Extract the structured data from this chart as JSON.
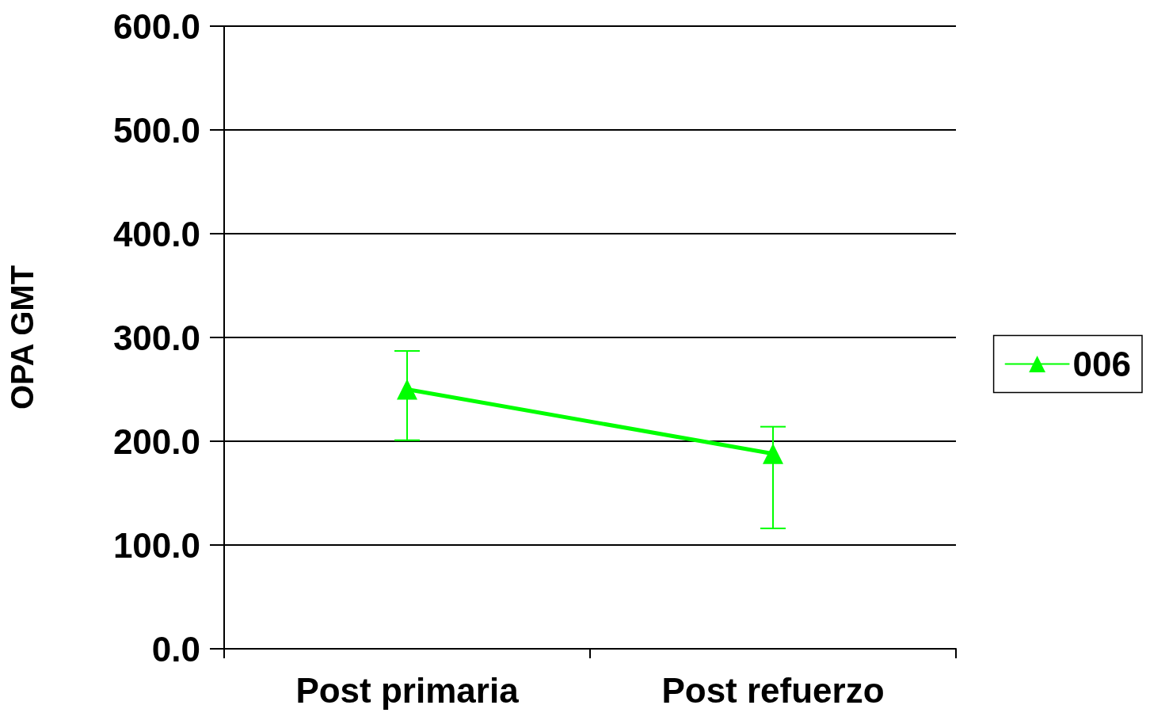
{
  "chart_data": {
    "type": "line",
    "ylabel": "OPA GMT",
    "categories": [
      "Post primaria",
      "Post refuerzo"
    ],
    "series": [
      {
        "name": "006",
        "color": "#00ff00",
        "values": [
          250,
          188
        ],
        "errors": [
          [
            201,
            287
          ],
          [
            116,
            214
          ]
        ]
      }
    ],
    "ylim": [
      0,
      600
    ],
    "yticks": [
      {
        "value": 0,
        "label": "0.0"
      },
      {
        "value": 100,
        "label": "100.0"
      },
      {
        "value": 200,
        "label": "200.0"
      },
      {
        "value": 300,
        "label": "300.0"
      },
      {
        "value": 400,
        "label": "400.0"
      },
      {
        "value": 500,
        "label": "500.0"
      },
      {
        "value": 600,
        "label": "600.0"
      }
    ],
    "grid": "y",
    "legend": "right",
    "marker": "triangle",
    "line_style": "solid"
  }
}
